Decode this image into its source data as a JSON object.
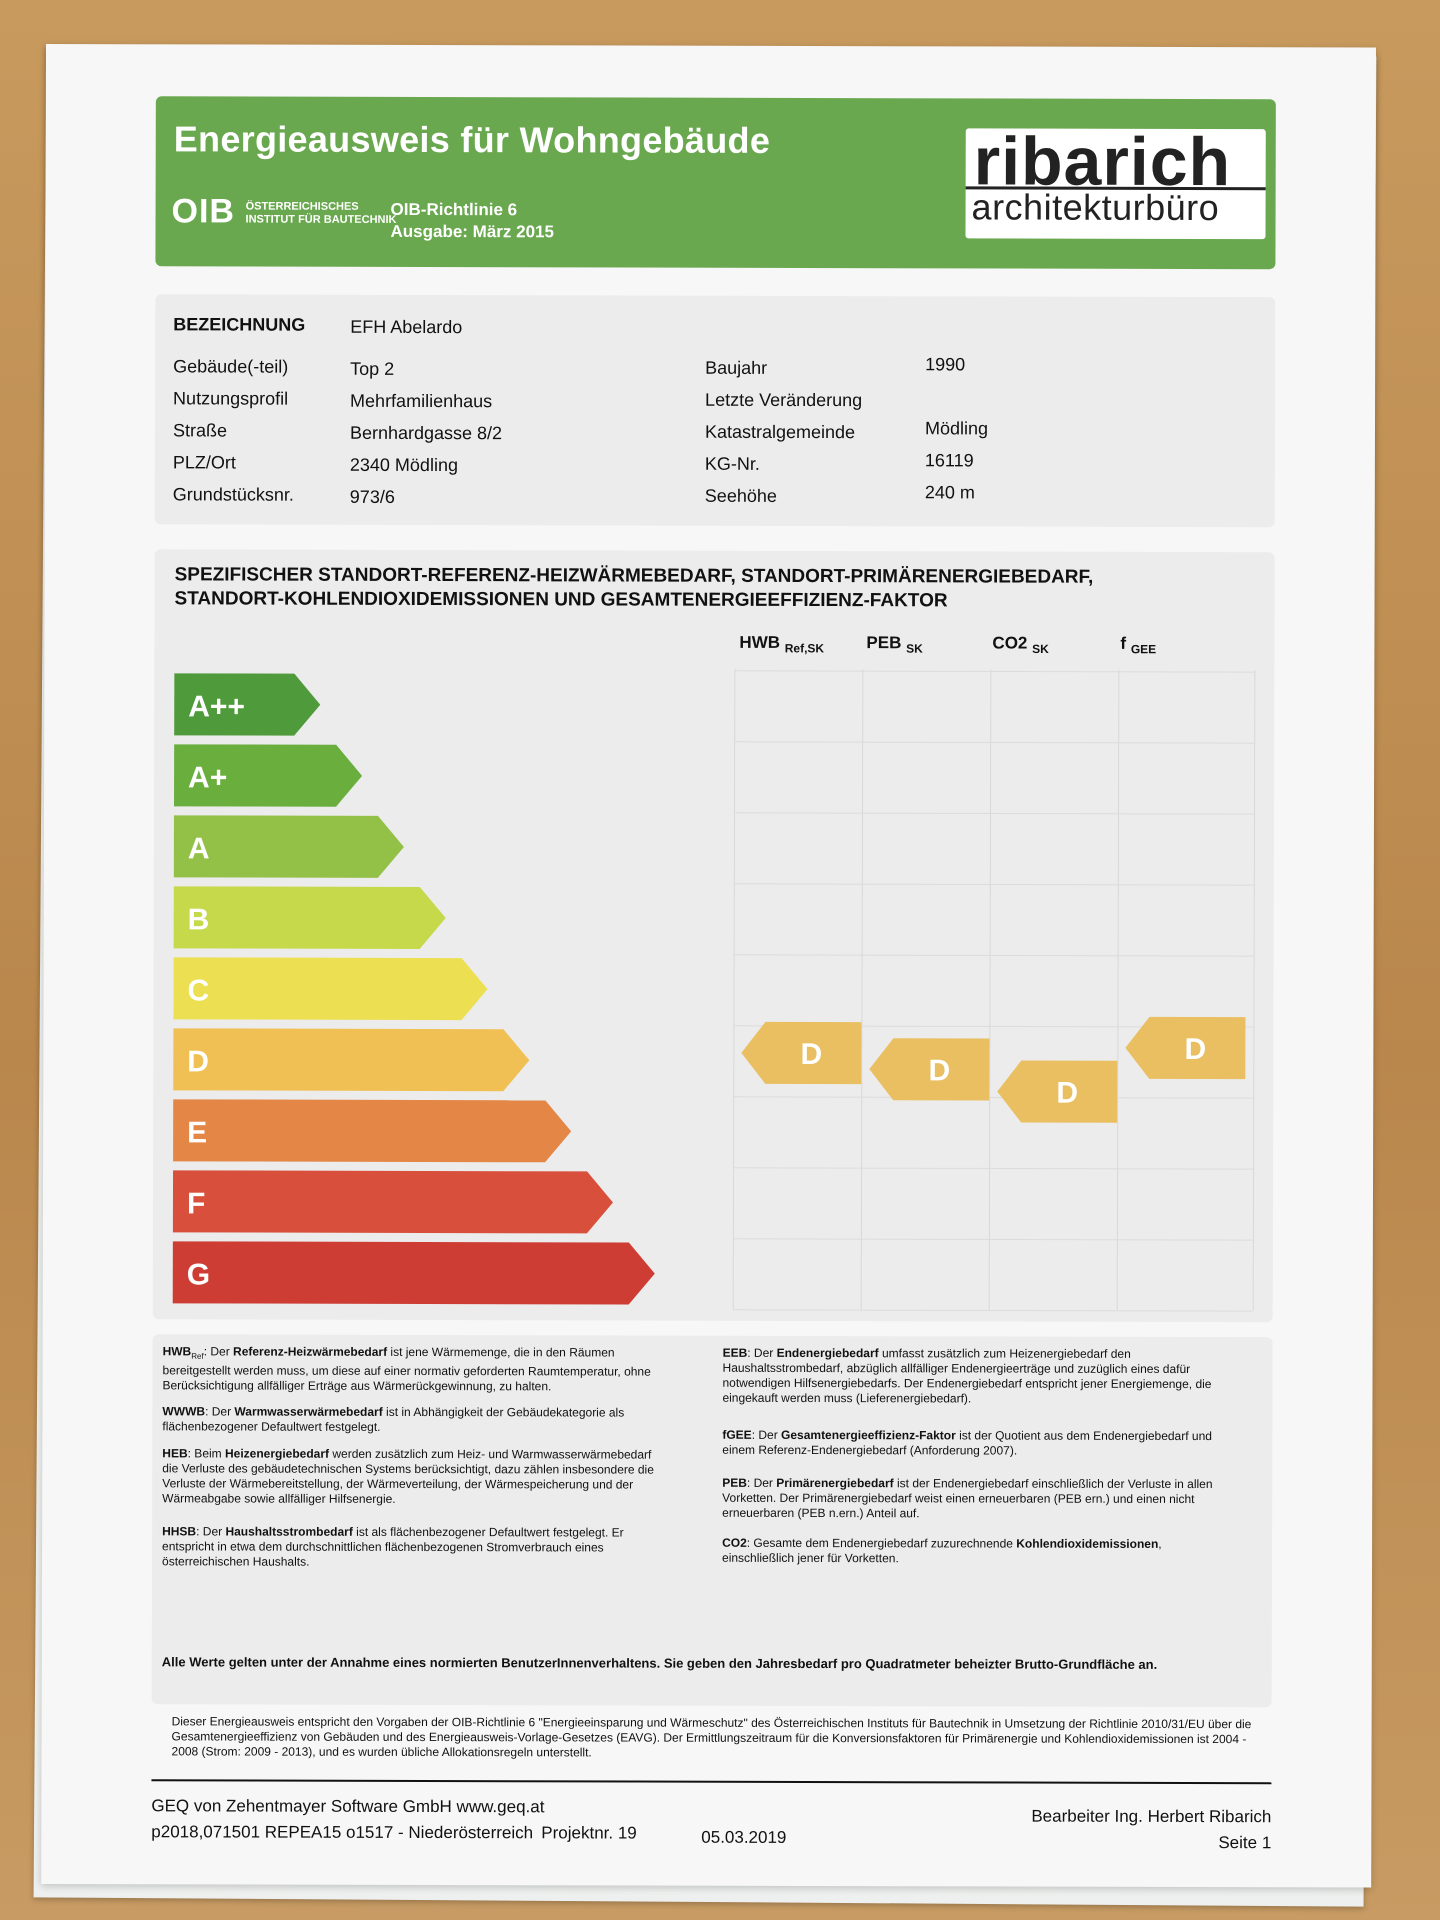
{
  "header": {
    "title": "Energieausweis für Wohngebäude",
    "oib_logo": "OIB",
    "oib_sub1": "ÖSTERREICHISCHES",
    "oib_sub2": "INSTITUT FÜR BAUTECHNIK",
    "richtlinie": "OIB-Richtlinie 6",
    "ausgabe": "Ausgabe: März 2015",
    "brand_top": "ribarich",
    "brand_bottom": "architekturbüro",
    "color": "#6aa84f"
  },
  "info": {
    "bezeichnung_label": "BEZEICHNUNG",
    "bezeichnung_value": "EFH Abelardo",
    "left": [
      {
        "label": "Gebäude(-teil)",
        "value": "Top 2"
      },
      {
        "label": "Nutzungsprofil",
        "value": "Mehrfamilienhaus"
      },
      {
        "label": "Straße",
        "value": "Bernhardgasse 8/2"
      },
      {
        "label": "PLZ/Ort",
        "value": "2340 Mödling"
      },
      {
        "label": "Grundstücksnr.",
        "value": "973/6"
      }
    ],
    "right": [
      {
        "label": "Baujahr",
        "value": "1990"
      },
      {
        "label": "Letzte Veränderung",
        "value": ""
      },
      {
        "label": "Katastralgemeinde",
        "value": "Mödling"
      },
      {
        "label": "KG-Nr.",
        "value": "16119"
      },
      {
        "label": "Seehöhe",
        "value": "240 m"
      }
    ]
  },
  "energy": {
    "title1": "SPEZIFISCHER STANDORT-REFERENZ-HEIZWÄRMEBEDARF, STANDORT-PRIMÄRENERGIEBEDARF,",
    "title2": "STANDORT-KOHLENDIOXIDEMISSIONEN UND GESAMTENERGIEEFFIZIENZ-FAKTOR",
    "columns": [
      {
        "main": "HWB",
        "sub": "Ref,SK"
      },
      {
        "main": "PEB",
        "sub": "SK"
      },
      {
        "main": "CO2",
        "sub": "SK"
      },
      {
        "main": "f",
        "sub": "GEE"
      }
    ],
    "classes": [
      {
        "label": "A++",
        "color": "#4f9a3a"
      },
      {
        "label": "A+",
        "color": "#6aae3e"
      },
      {
        "label": "A",
        "color": "#93c047"
      },
      {
        "label": "B",
        "color": "#c6d94a"
      },
      {
        "label": "C",
        "color": "#ecdf52"
      },
      {
        "label": "D",
        "color": "#f0c055"
      },
      {
        "label": "E",
        "color": "#e38646"
      },
      {
        "label": "F",
        "color": "#d8503b"
      },
      {
        "label": "G",
        "color": "#cd3d34"
      }
    ],
    "ratings": [
      {
        "column": "HWB Ref,SK",
        "class": "D"
      },
      {
        "column": "PEB SK",
        "class": "D"
      },
      {
        "column": "CO2 SK",
        "class": "D"
      },
      {
        "column": "f GEE",
        "class": "D"
      }
    ],
    "rating_color": "#e9bf62"
  },
  "defs": {
    "hwb": {
      "k": "HWB",
      "ks": "Ref",
      "b": "Referenz-Heizwärmebedarf",
      "t1": ": Der ",
      "t2": " ist jene Wärmemenge, die in den Räumen bereitgestellt werden muss, um diese auf einer normativ geforderten Raumtemperatur, ohne Berücksichtigung allfälliger Erträge aus Wärmerückgewinnung, zu halten."
    },
    "wwwb": {
      "k": "WWWB",
      "t1": ": Der ",
      "b": "Warmwasserwärmebedarf",
      "t2": " ist in Abhängigkeit der Gebäudekategorie als flächenbezogener Defaultwert festgelegt."
    },
    "heb": {
      "k": "HEB",
      "t1": ": Beim ",
      "b": "Heizenergiebedarf",
      "t2": " werden zusätzlich zum Heiz- und Warmwasserwärmebedarf die Verluste des gebäudetechnischen Systems berücksichtigt, dazu zählen insbesondere die Verluste der Wärmebereitstellung, der Wärmeverteilung, der Wärmespeicherung und der Wärmeabgabe sowie allfälliger Hilfsenergie."
    },
    "hhsb": {
      "k": "HHSB",
      "t1": ": Der ",
      "b": "Haushaltsstrombedarf",
      "t2": " ist als flächenbezogener Defaultwert festgelegt. Er entspricht in etwa dem durchschnittlichen flächenbezogenen Stromverbrauch eines österreichischen Haushalts."
    },
    "eeb": {
      "k": "EEB",
      "t1": ": Der ",
      "b": "Endenergiebedarf",
      "t2": " umfasst zusätzlich zum Heizenergiebedarf den Haushaltsstrombedarf, abzüglich allfälliger Endenergieerträge und zuzüglich eines dafür notwendigen Hilfsenergiebedarfs. Der Endenergiebedarf entspricht jener Energiemenge, die eingekauft werden muss (Lieferenergiebedarf)."
    },
    "fgee": {
      "k": "fGEE",
      "t1": ": Der ",
      "b": "Gesamtenergieeffizienz-Faktor",
      "t2": " ist der Quotient aus dem Endenergiebedarf und einem Referenz-Endenergiebedarf (Anforderung 2007)."
    },
    "peb": {
      "k": "PEB",
      "t1": ": Der ",
      "b": "Primärenergiebedarf",
      "t2": " ist der Endenergiebedarf einschließlich der Verluste in allen Vorketten. Der Primärenergiebedarf weist einen erneuerbaren (PEB ern.) und einen nicht erneuerbaren (PEB n.ern.) Anteil auf."
    },
    "co2": {
      "k": "CO2",
      "t1": ": Gesamte dem Endenergiebedarf zuzurechnende ",
      "b": "Kohlendioxidemissionen",
      "t2": ", einschließlich jener für Vorketten."
    },
    "note": "Alle Werte gelten unter der Annahme eines normierten BenutzerInnenverhaltens. Sie geben den Jahresbedarf pro Quadratmeter beheizter Brutto-Grundfläche an."
  },
  "legal": "Dieser Energieausweis entspricht den Vorgaben der OIB-Richtlinie 6 \"Energieeinsparung und Wärmeschutz\" des Österreichischen Instituts für Bautechnik in Umsetzung der Richtlinie 2010/31/EU über die Gesamtenergieeffizienz von Gebäuden und des Energieausweis-Vorlage-Gesetzes (EAVG). Der Ermittlungszeitraum für die Konversionsfaktoren für Primärenergie und Kohlendioxidemissionen ist 2004 - 2008 (Strom: 2009 - 2013), und es wurden übliche Allokationsregeln unterstellt.",
  "footer": {
    "software": "GEQ von Zehentmayer Software GmbH www.geq.at",
    "code": "p2018,071501 REPEA15 o1517 - Niederösterreich",
    "projekt": "Projektnr. 19",
    "date": "05.03.2019",
    "bearbeiter": "Bearbeiter Ing. Herbert Ribarich",
    "seite": "Seite 1"
  }
}
